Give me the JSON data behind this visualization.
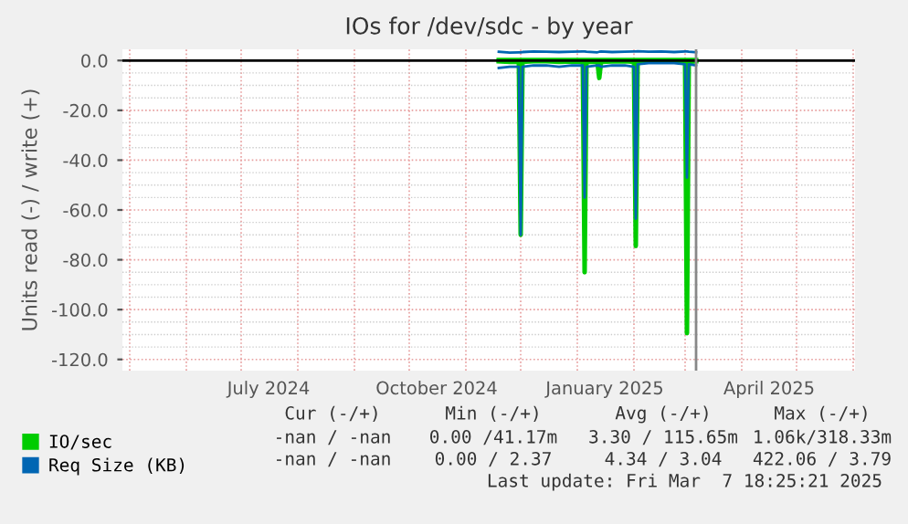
{
  "chart_data": {
    "type": "line",
    "title": "IOs for /dev/sdc - by year",
    "ylabel": "Units read (-) / write (+)",
    "x": [
      "2024-11-19",
      "2024-11-25",
      "2024-11-30",
      "2024-12-01",
      "2024-12-02",
      "2024-12-08",
      "2024-12-15",
      "2024-12-22",
      "2024-12-29",
      "2025-01-04",
      "2025-01-05",
      "2025-01-06",
      "2025-01-12",
      "2025-01-13",
      "2025-01-14",
      "2025-01-20",
      "2025-01-27",
      "2025-02-01",
      "2025-02-02",
      "2025-02-03",
      "2025-02-09",
      "2025-02-16",
      "2025-02-23",
      "2025-03-01",
      "2025-03-02",
      "2025-03-03",
      "2025-03-07"
    ],
    "series": [
      {
        "name": "IO/sec",
        "color": "#00cc00",
        "values": [
          -0.3,
          -0.5,
          -0.5,
          -70,
          -0.5,
          -0.3,
          -0.3,
          -0.5,
          -0.4,
          -0.5,
          -85,
          -0.5,
          -0.5,
          -7,
          -0.5,
          -0.4,
          -0.3,
          -0.5,
          -74.5,
          -0.5,
          -0.3,
          -0.3,
          -0.3,
          -0.5,
          -109.5,
          -0.5,
          -0.3
        ]
      },
      {
        "color": "#00cc00",
        "values": [
          0.2,
          0.2,
          0.2,
          0.2,
          0.2,
          0.2,
          0.2,
          0.2,
          0.2,
          0.2,
          0.2,
          0.2,
          0.2,
          0.2,
          0.2,
          0.2,
          0.2,
          0.2,
          0.2,
          0.2,
          0.2,
          0.2,
          0.2,
          0.2,
          0.2,
          0.2,
          0.2
        ]
      },
      {
        "name": "Req Size (KB)",
        "color": "#0066b3",
        "values": [
          -3,
          -2.5,
          -2.5,
          -70,
          -2.5,
          -2,
          -2,
          -2.5,
          -2,
          -2,
          -55,
          -2.5,
          -2,
          -2,
          -2.5,
          -2,
          -2,
          -2.5,
          -63.5,
          -1.5,
          -1,
          -1,
          -1,
          -1.5,
          -47,
          -1.5,
          -2
        ]
      },
      {
        "color": "#0066b3",
        "values": [
          3.5,
          3.2,
          3.3,
          3.3,
          3.4,
          3.6,
          3.5,
          3.4,
          3.5,
          3.6,
          3.6,
          3.5,
          3.3,
          3.5,
          3.6,
          3.4,
          3.5,
          3.6,
          3.6,
          3.7,
          3.5,
          3.6,
          3.4,
          3.6,
          3.6,
          3.5,
          3.3
        ]
      }
    ],
    "xlim": [
      "2024-04-27",
      "2025-06-02"
    ],
    "xticks": [
      {
        "value": "2024-07-16",
        "label": "July 2024"
      },
      {
        "value": "2024-10-16",
        "label": "October 2024"
      },
      {
        "value": "2025-01-16",
        "label": "January 2025"
      },
      {
        "value": "2025-04-16",
        "label": "April 2025"
      }
    ],
    "ylim": [
      -124.5,
      4.5
    ],
    "yticks": [
      {
        "value": 0,
        "label": "0.0"
      },
      {
        "value": -20,
        "label": "-20.0"
      },
      {
        "value": -40,
        "label": "-40.0"
      },
      {
        "value": -60,
        "label": "-60.0"
      },
      {
        "value": -80,
        "label": "-80.0"
      },
      {
        "value": -100,
        "label": "-100.0"
      },
      {
        "value": -120,
        "label": "-120.0"
      }
    ],
    "ref_lines": [
      {
        "axis": "y",
        "value": 0,
        "color": "#000000"
      },
      {
        "axis": "x",
        "value": "2025-03-07",
        "color": "#888888"
      }
    ],
    "grid": true,
    "legend": "bottom left",
    "annotations": [
      "Cur (-/+)",
      "Min (-/+)",
      "Avg (-/+)",
      "Max (-/+)",
      "-nan / -nan",
      "0.00 /41.17m",
      "3.30 / 115.65m",
      "1.06k/318.33m",
      "-nan / -nan",
      "0.00 / 2.37",
      "4.34 / 3.04",
      "422.06 / 3.79",
      "Last update: Fri Mar  7 18:25:21 2025"
    ]
  }
}
